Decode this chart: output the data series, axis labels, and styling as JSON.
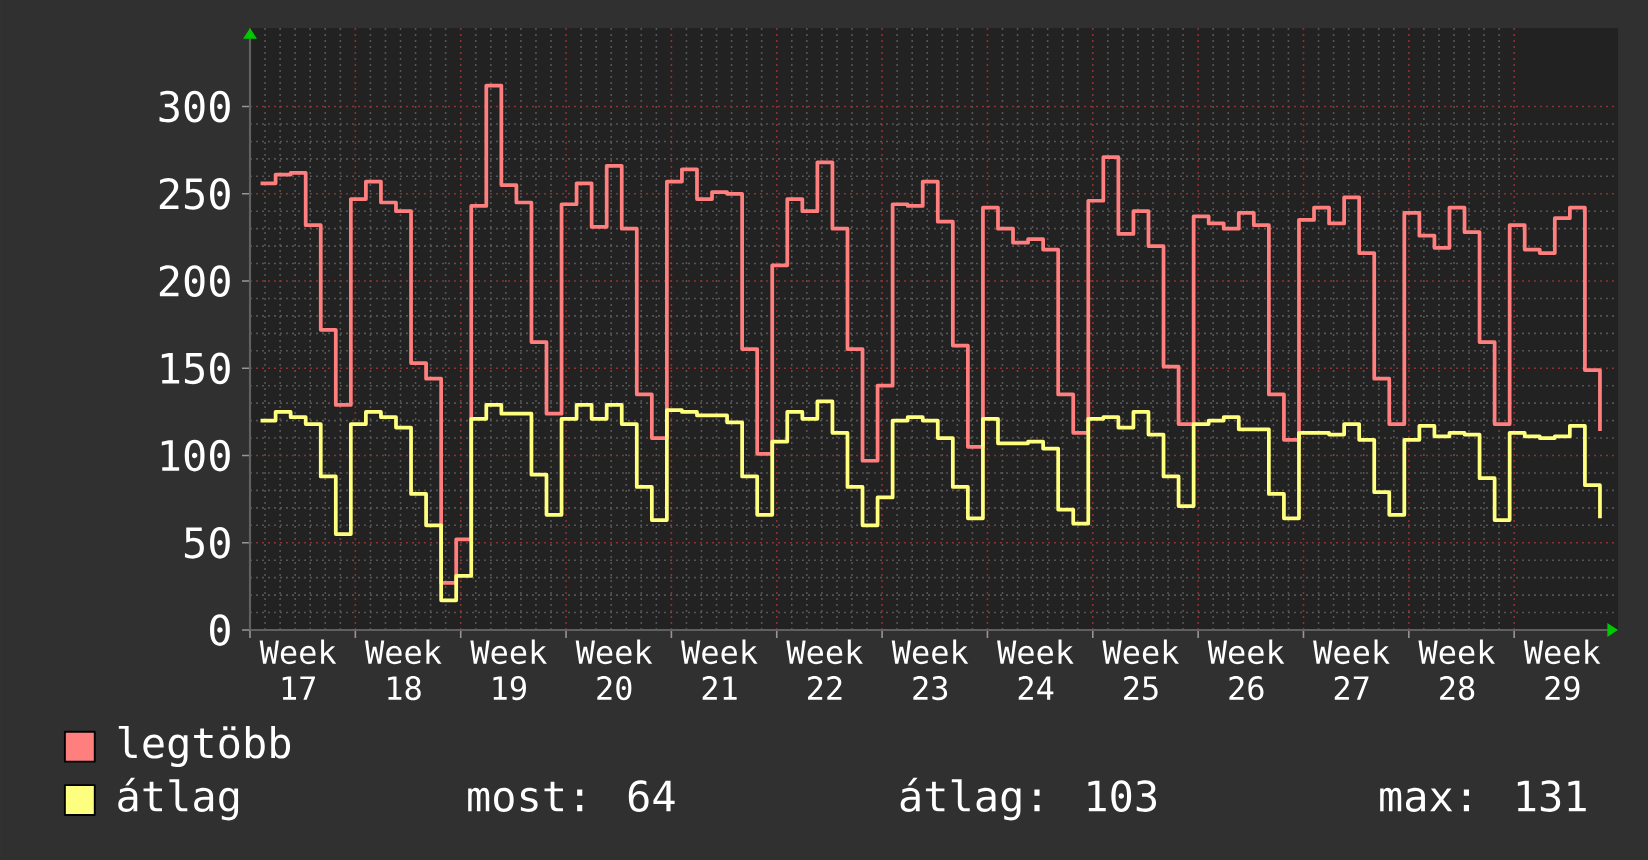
{
  "chart_data": {
    "type": "step",
    "categories": [
      null,
      null,
      "Week 17",
      null,
      null,
      null,
      null,
      null,
      null,
      "Week 18",
      null,
      null,
      null,
      null,
      null,
      null,
      "Week 19",
      null,
      null,
      null,
      null,
      null,
      null,
      "Week 20",
      null,
      null,
      null,
      null,
      null,
      null,
      "Week 21",
      null,
      null,
      null,
      null,
      null,
      null,
      "Week 22",
      null,
      null,
      null,
      null,
      null,
      null,
      "Week 23",
      null,
      null,
      null,
      null,
      null,
      null,
      "Week 24",
      null,
      null,
      null,
      null,
      null,
      null,
      "Week 25",
      null,
      null,
      null,
      null,
      null,
      null,
      "Week 26",
      null,
      null,
      null,
      null,
      null,
      null,
      "Week 27",
      null,
      null,
      null,
      null,
      null,
      null,
      "Week 28",
      null,
      null,
      null,
      null,
      null,
      null,
      "Week 29",
      null,
      null,
      null
    ],
    "series": [
      {
        "name": "legtöbb",
        "color": "#ff7f7f",
        "values": [
          256,
          261,
          262,
          232,
          172,
          129,
          247,
          257,
          245,
          240,
          153,
          144,
          27,
          52,
          243,
          312,
          255,
          245,
          165,
          124,
          244,
          256,
          231,
          266,
          230,
          135,
          110,
          257,
          264,
          247,
          251,
          250,
          161,
          101,
          209,
          247,
          240,
          268,
          230,
          161,
          97,
          140,
          244,
          243,
          257,
          234,
          163,
          105,
          242,
          230,
          222,
          224,
          218,
          135,
          113,
          246,
          271,
          227,
          240,
          220,
          151,
          118,
          237,
          233,
          230,
          239,
          232,
          135,
          109,
          235,
          242,
          233,
          248,
          216,
          144,
          118,
          239,
          226,
          219,
          242,
          228,
          165,
          118,
          232,
          218,
          216,
          236,
          242,
          149,
          114
        ]
      },
      {
        "name": "átlag",
        "color": "#ffff7f",
        "values": [
          120,
          125,
          122,
          118,
          88,
          55,
          118,
          125,
          122,
          116,
          78,
          60,
          17,
          31,
          121,
          129,
          124,
          124,
          89,
          66,
          121,
          129,
          121,
          129,
          118,
          82,
          63,
          126,
          125,
          123,
          123,
          119,
          88,
          66,
          108,
          125,
          121,
          131,
          113,
          82,
          60,
          76,
          120,
          122,
          120,
          110,
          82,
          64,
          121,
          107,
          107,
          108,
          104,
          69,
          61,
          121,
          122,
          116,
          125,
          112,
          88,
          71,
          118,
          120,
          122,
          115,
          115,
          78,
          64,
          113,
          113,
          112,
          118,
          109,
          79,
          66,
          109,
          117,
          111,
          113,
          112,
          87,
          63,
          113,
          111,
          110,
          111,
          117,
          83,
          64
        ]
      }
    ],
    "ylim": [
      0,
      345
    ],
    "yticks": [
      0,
      50,
      100,
      150,
      200,
      250,
      300
    ],
    "grid": true,
    "legend": "bottom left",
    "annotations": [
      "most: 64",
      "átlag: 103",
      "max: 131"
    ]
  }
}
